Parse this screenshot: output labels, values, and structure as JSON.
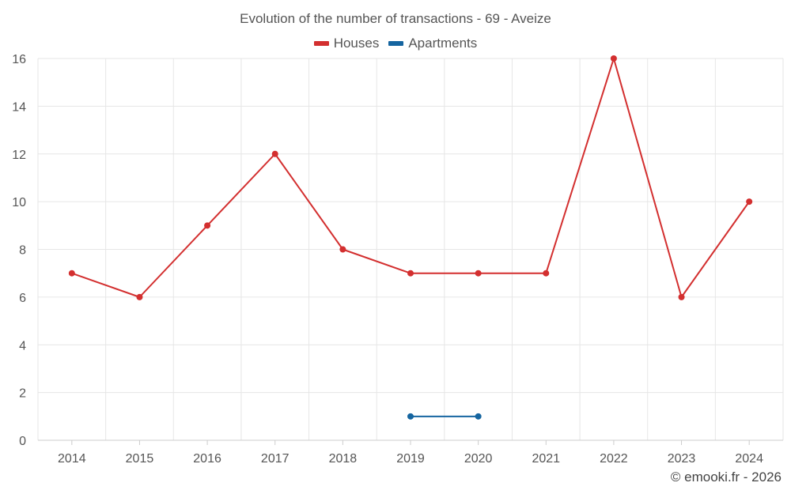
{
  "chart_data": {
    "type": "line",
    "title": "Evolution of the number of transactions - 69 - Aveize",
    "categories": [
      "2014",
      "2015",
      "2016",
      "2017",
      "2018",
      "2019",
      "2020",
      "2021",
      "2022",
      "2023",
      "2024"
    ],
    "series": [
      {
        "name": "Houses",
        "color": "#d32f2f",
        "values": [
          7,
          6,
          9,
          12,
          8,
          7,
          7,
          7,
          16,
          6,
          10
        ]
      },
      {
        "name": "Apartments",
        "color": "#1565a0",
        "values": [
          null,
          null,
          null,
          null,
          null,
          1,
          1,
          null,
          null,
          null,
          null
        ]
      }
    ],
    "yticks": [
      0,
      2,
      4,
      6,
      8,
      10,
      12,
      14,
      16
    ],
    "ylim": [
      0,
      16
    ],
    "xlabel": "",
    "ylabel": "",
    "legend": "top-center",
    "grid": true
  },
  "credit": "© emooki.fr - 2026"
}
